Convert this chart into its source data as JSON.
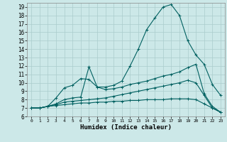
{
  "title": "",
  "xlabel": "Humidex (Indice chaleur)",
  "ylabel": "",
  "background_color": "#cce8e8",
  "grid_color": "#aacccc",
  "line_color": "#006060",
  "xlim": [
    -0.5,
    23.5
  ],
  "ylim": [
    6,
    19.5
  ],
  "xticks": [
    0,
    1,
    2,
    3,
    4,
    5,
    6,
    7,
    8,
    9,
    10,
    11,
    12,
    13,
    14,
    15,
    16,
    17,
    18,
    19,
    20,
    21,
    22,
    23
  ],
  "yticks": [
    6,
    7,
    8,
    9,
    10,
    11,
    12,
    13,
    14,
    15,
    16,
    17,
    18,
    19
  ],
  "line1_x": [
    0,
    1,
    2,
    3,
    4,
    5,
    6,
    7,
    8,
    9,
    10,
    11,
    12,
    13,
    14,
    15,
    16,
    17,
    18,
    19,
    20,
    21,
    22,
    23
  ],
  "line1_y": [
    7.0,
    7.0,
    7.2,
    8.2,
    9.4,
    9.7,
    10.5,
    10.4,
    9.5,
    9.5,
    9.7,
    10.2,
    12.0,
    14.0,
    16.3,
    17.7,
    19.0,
    19.3,
    18.0,
    15.0,
    13.3,
    12.2,
    9.8,
    8.5
  ],
  "line2_x": [
    0,
    1,
    2,
    3,
    4,
    5,
    6,
    7,
    8,
    9,
    10,
    11,
    12,
    13,
    14,
    15,
    16,
    17,
    18,
    19,
    20,
    21,
    22,
    23
  ],
  "line2_y": [
    7.0,
    7.0,
    7.2,
    7.5,
    8.0,
    8.2,
    8.3,
    11.9,
    9.5,
    9.2,
    9.3,
    9.5,
    9.8,
    10.0,
    10.2,
    10.5,
    10.8,
    11.0,
    11.3,
    11.8,
    12.2,
    8.7,
    7.2,
    6.5
  ],
  "line3_x": [
    0,
    1,
    2,
    3,
    4,
    5,
    6,
    7,
    8,
    9,
    10,
    11,
    12,
    13,
    14,
    15,
    16,
    17,
    18,
    19,
    20,
    21,
    22,
    23
  ],
  "line3_y": [
    7.0,
    7.0,
    7.2,
    7.4,
    7.7,
    7.8,
    7.9,
    8.0,
    8.1,
    8.2,
    8.4,
    8.6,
    8.8,
    9.0,
    9.2,
    9.4,
    9.6,
    9.8,
    10.0,
    10.3,
    10.0,
    8.5,
    7.0,
    6.5
  ],
  "line4_x": [
    0,
    1,
    2,
    3,
    4,
    5,
    6,
    7,
    8,
    9,
    10,
    11,
    12,
    13,
    14,
    15,
    16,
    17,
    18,
    19,
    20,
    21,
    22,
    23
  ],
  "line4_y": [
    7.0,
    7.0,
    7.2,
    7.3,
    7.4,
    7.5,
    7.6,
    7.6,
    7.7,
    7.7,
    7.8,
    7.8,
    7.9,
    7.9,
    8.0,
    8.0,
    8.0,
    8.1,
    8.1,
    8.1,
    8.0,
    7.5,
    7.0,
    6.5
  ]
}
